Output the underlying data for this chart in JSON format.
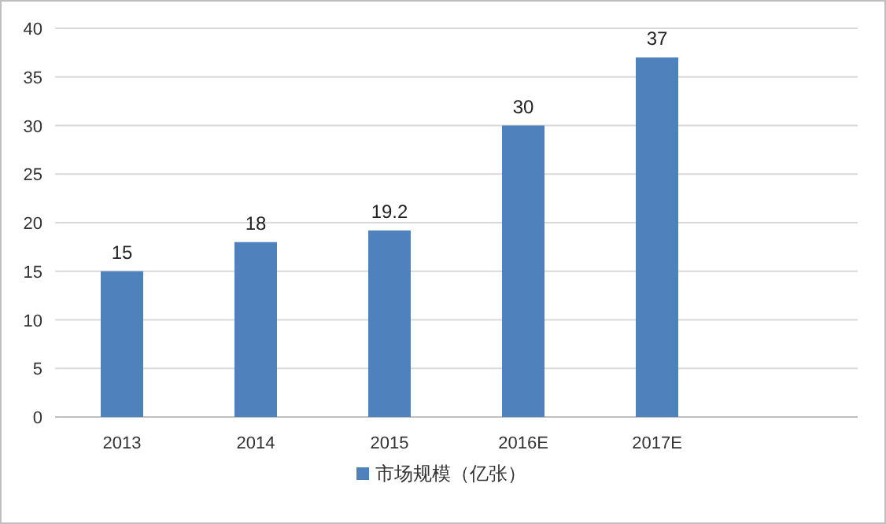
{
  "chart_data": {
    "type": "bar",
    "categories": [
      "2013",
      "2014",
      "2015",
      "2016E",
      "2017E",
      null
    ],
    "series": [
      {
        "name": "市场规模（亿张）",
        "color": "#4f81bd",
        "values": [
          15,
          18,
          19.2,
          30,
          37,
          null
        ]
      }
    ],
    "ylim": [
      0,
      40
    ],
    "yticks": [
      0,
      5,
      10,
      15,
      20,
      25,
      30,
      35,
      40
    ],
    "grid": "y",
    "legend": "bottom",
    "data_labels": true
  }
}
